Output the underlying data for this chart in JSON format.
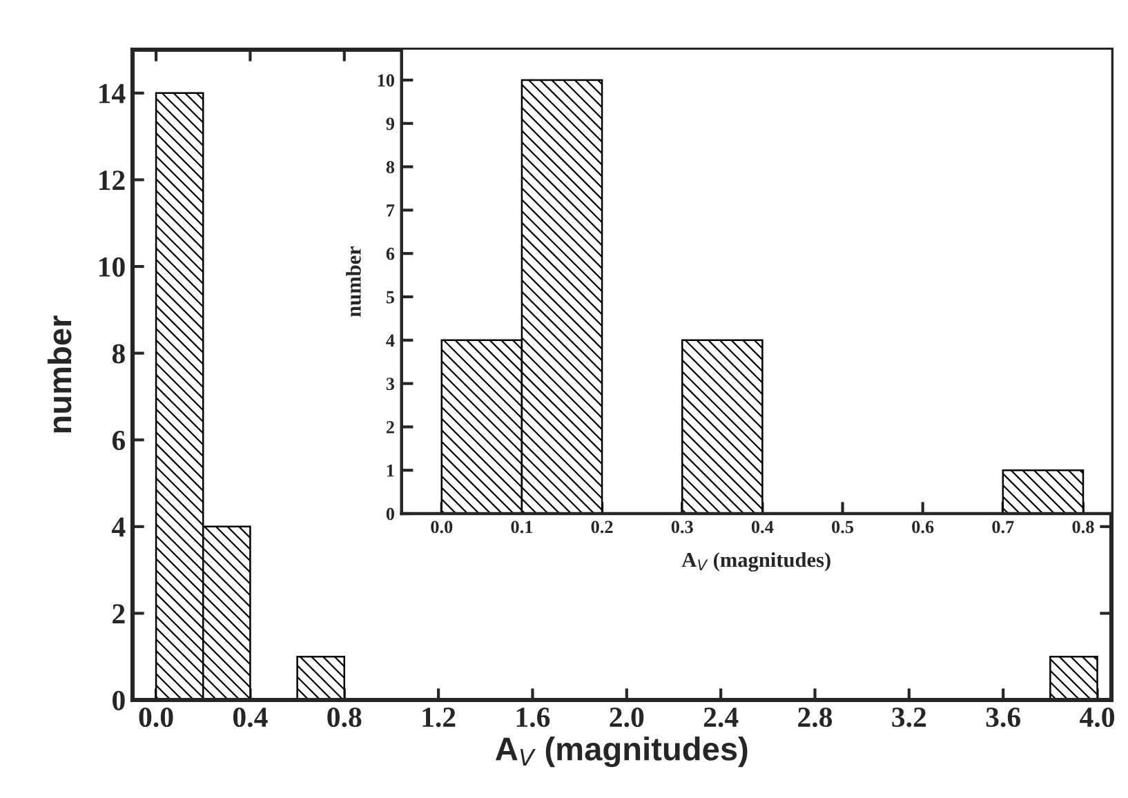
{
  "chart_data": [
    {
      "type": "histogram",
      "xlabel": "A$_{V}$ (magnitudes)",
      "ylabel": "number",
      "color": "#000000",
      "bins": [
        0.0,
        0.2,
        0.4,
        0.6,
        0.8,
        1.0,
        1.2,
        1.4,
        1.6,
        1.8,
        2.0,
        2.2,
        2.4,
        2.6,
        2.8,
        3.0,
        3.2,
        3.4,
        3.6,
        3.8,
        4.0
      ],
      "values": [
        14,
        4,
        0,
        1,
        0,
        0,
        0,
        0,
        0,
        0,
        0,
        0,
        0,
        0,
        0,
        0,
        0,
        0,
        0,
        1
      ],
      "xlim": [
        -0.1,
        4.06
      ],
      "ylim": [
        0,
        15
      ],
      "xticks": [
        {
          "value": 0,
          "label": "0.0"
        },
        0.4,
        0.8,
        1.2,
        1.6,
        {
          "value": 2,
          "label": "2.0"
        },
        2.4,
        2.8,
        3.2,
        3.6,
        {
          "value": 4,
          "label": "4.0"
        }
      ],
      "yticks": [
        0,
        2,
        4,
        6,
        8,
        10,
        12,
        14
      ]
    },
    {
      "type": "histogram",
      "xlabel": "A$_{V}$ (magnitudes)",
      "ylabel": "number",
      "color": "#000000",
      "bins": [
        0.0,
        0.1,
        0.2,
        0.3,
        0.4,
        0.5,
        0.6,
        0.7,
        0.8
      ],
      "values": [
        4,
        10,
        0,
        4,
        0,
        0,
        0,
        1
      ],
      "xlim": [
        -0.05,
        0.835
      ],
      "ylim": [
        0,
        10.7
      ],
      "xticks": [
        {
          "value": 0,
          "label": "0.0"
        },
        0.1,
        0.2,
        0.3,
        0.4,
        0.5,
        0.6,
        0.7,
        0.8
      ],
      "yticks": [
        0,
        1,
        2,
        3,
        4,
        5,
        6,
        7,
        8,
        9,
        10
      ]
    }
  ]
}
